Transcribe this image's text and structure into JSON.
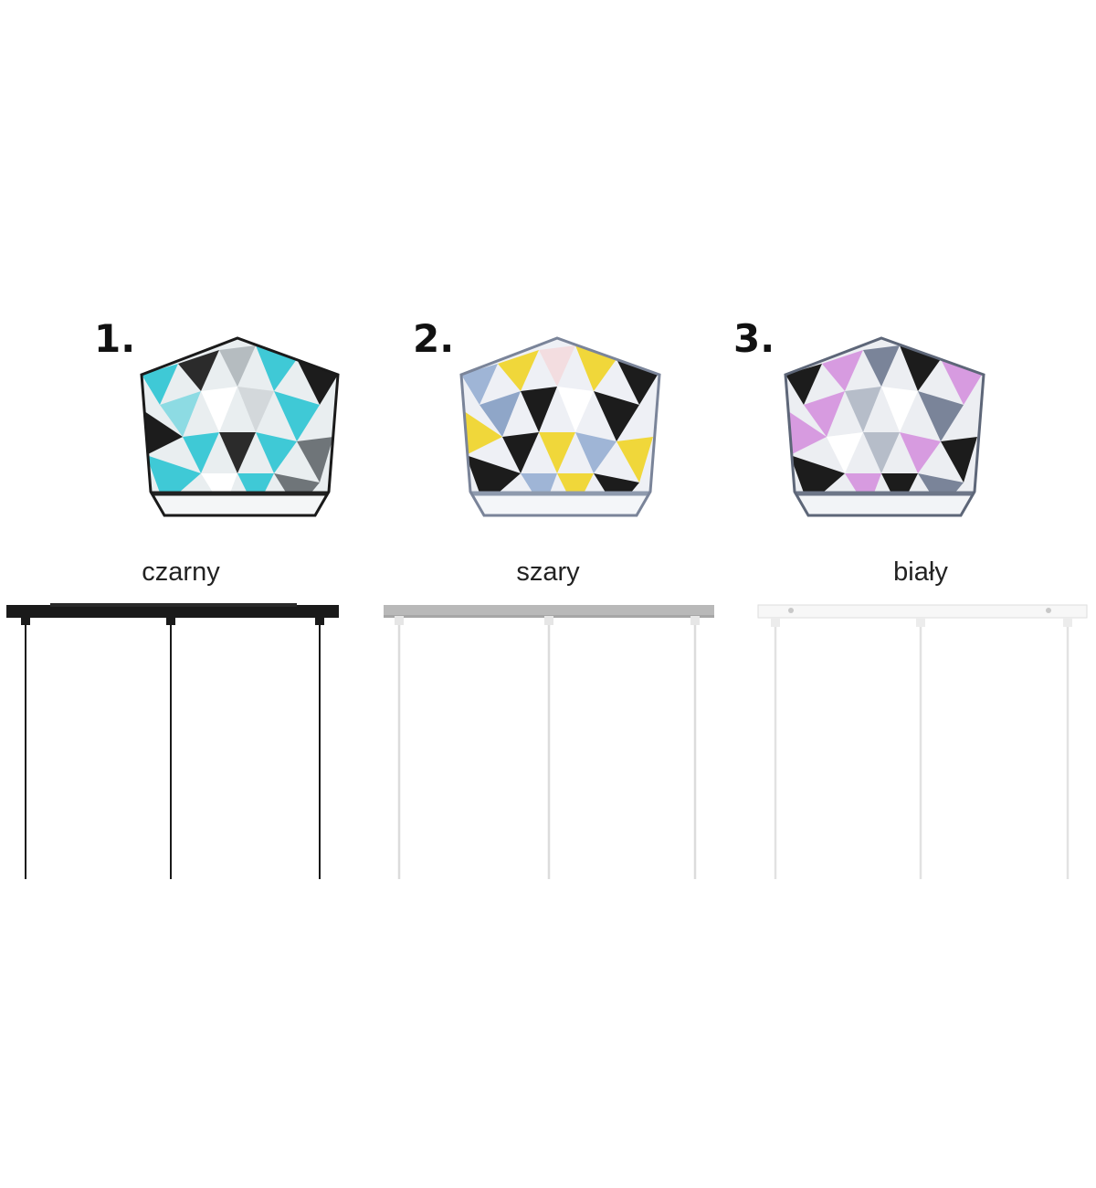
{
  "options": [
    {
      "number": "1.",
      "label": "czarny",
      "accent": "#3fc9d6",
      "fixture_color": "#1a1a1a"
    },
    {
      "number": "2.",
      "label": "szary",
      "accent": "#f0d73a",
      "fixture_color": "#b9b9b9"
    },
    {
      "number": "3.",
      "label": "biały",
      "accent": "#d79be0",
      "fixture_color": "#f4f4f4"
    }
  ]
}
